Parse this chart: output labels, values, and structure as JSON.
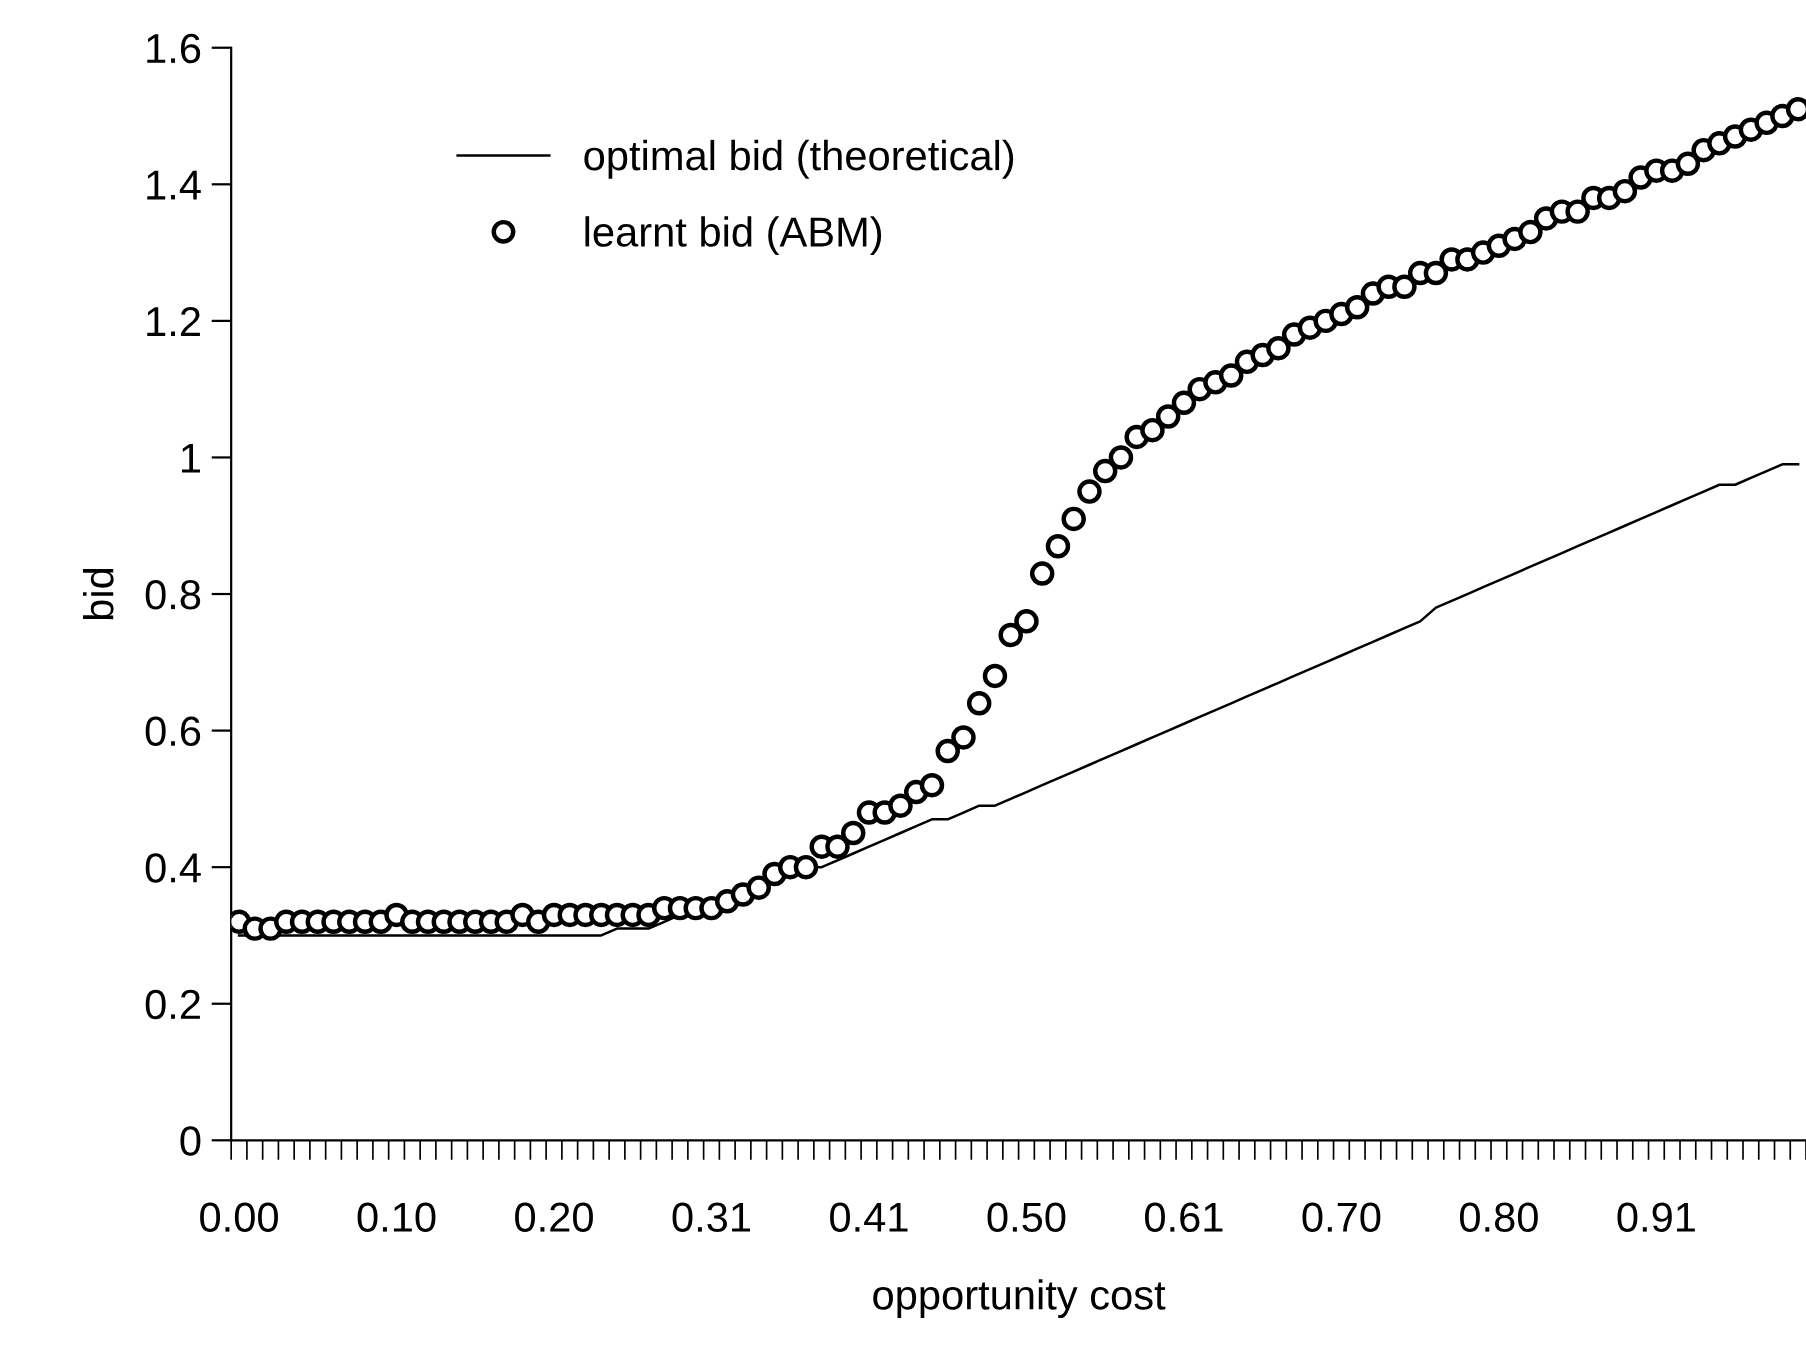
{
  "chart_data": {
    "type": "line",
    "xlabel": "opportunity cost",
    "ylabel": "bid",
    "categories": [
      "0.00",
      null,
      null,
      null,
      null,
      null,
      null,
      null,
      null,
      null,
      "0.10",
      null,
      null,
      null,
      null,
      null,
      null,
      null,
      null,
      null,
      "0.20",
      null,
      null,
      null,
      null,
      null,
      null,
      null,
      null,
      null,
      "0.31",
      null,
      null,
      null,
      null,
      null,
      null,
      null,
      null,
      null,
      "0.41",
      null,
      null,
      null,
      null,
      null,
      null,
      null,
      null,
      null,
      "0.50",
      null,
      null,
      null,
      null,
      null,
      null,
      null,
      null,
      null,
      "0.61",
      null,
      null,
      null,
      null,
      null,
      null,
      null,
      null,
      null,
      "0.70",
      null,
      null,
      null,
      null,
      null,
      null,
      null,
      null,
      null,
      "0.80",
      null,
      null,
      null,
      null,
      null,
      null,
      null,
      null,
      null,
      "0.91",
      null,
      null,
      null,
      null,
      null,
      null,
      null,
      null,
      null
    ],
    "series": [
      {
        "name": "optimal bid (theoretical)",
        "color": "#000000",
        "marker": "none",
        "values": [
          0.3,
          0.3,
          0.3,
          0.3,
          0.3,
          0.3,
          0.3,
          0.3,
          0.3,
          0.3,
          0.3,
          0.3,
          0.3,
          0.3,
          0.3,
          0.3,
          0.3,
          0.3,
          0.3,
          0.3,
          0.3,
          0.3,
          0.3,
          0.3,
          0.31,
          0.31,
          0.31,
          0.32,
          0.33,
          0.33,
          0.34,
          0.35,
          0.36,
          0.37,
          0.38,
          0.39,
          0.4,
          0.4,
          0.41,
          0.42,
          0.43,
          0.44,
          0.45,
          0.46,
          0.47,
          0.47,
          0.48,
          0.49,
          0.49,
          0.5,
          0.51,
          0.52,
          0.53,
          0.54,
          0.55,
          0.56,
          0.57,
          0.58,
          0.59,
          0.6,
          0.61,
          0.62,
          0.63,
          0.64,
          0.65,
          0.66,
          0.67,
          0.68,
          0.69,
          0.7,
          0.71,
          0.72,
          0.73,
          0.74,
          0.75,
          0.76,
          0.78,
          0.79,
          0.8,
          0.81,
          0.82,
          0.83,
          0.84,
          0.85,
          0.86,
          0.87,
          0.88,
          0.89,
          0.9,
          0.91,
          0.92,
          0.93,
          0.94,
          0.95,
          0.96,
          0.96,
          0.97,
          0.98,
          0.99,
          0.99
        ]
      },
      {
        "name": "learnt bid (ABM)",
        "type": "scatter",
        "color": "#000000",
        "marker": "circle",
        "values": [
          0.32,
          0.31,
          0.31,
          0.32,
          0.32,
          0.32,
          0.32,
          0.32,
          0.32,
          0.32,
          0.33,
          0.32,
          0.32,
          0.32,
          0.32,
          0.32,
          0.32,
          0.32,
          0.33,
          0.32,
          0.33,
          0.33,
          0.33,
          0.33,
          0.33,
          0.33,
          0.33,
          0.34,
          0.34,
          0.34,
          0.34,
          0.35,
          0.36,
          0.37,
          0.39,
          0.4,
          0.4,
          0.43,
          0.43,
          0.45,
          0.48,
          0.48,
          0.49,
          0.51,
          0.52,
          0.57,
          0.59,
          0.64,
          0.68,
          0.74,
          0.76,
          0.83,
          0.87,
          0.91,
          0.95,
          0.98,
          1.0,
          1.03,
          1.04,
          1.06,
          1.08,
          1.1,
          1.11,
          1.12,
          1.14,
          1.15,
          1.16,
          1.18,
          1.19,
          1.2,
          1.21,
          1.22,
          1.24,
          1.25,
          1.25,
          1.27,
          1.27,
          1.29,
          1.29,
          1.3,
          1.31,
          1.32,
          1.33,
          1.35,
          1.36,
          1.36,
          1.38,
          1.38,
          1.39,
          1.41,
          1.42,
          1.42,
          1.43,
          1.45,
          1.46,
          1.47,
          1.48,
          1.49,
          1.5,
          1.51
        ]
      }
    ],
    "ylim": [
      0,
      1.6
    ],
    "yticks": [
      0,
      0.2,
      0.4,
      0.6,
      0.8,
      1,
      1.2,
      1.4,
      1.6
    ],
    "grid": false,
    "legend": "top left"
  }
}
